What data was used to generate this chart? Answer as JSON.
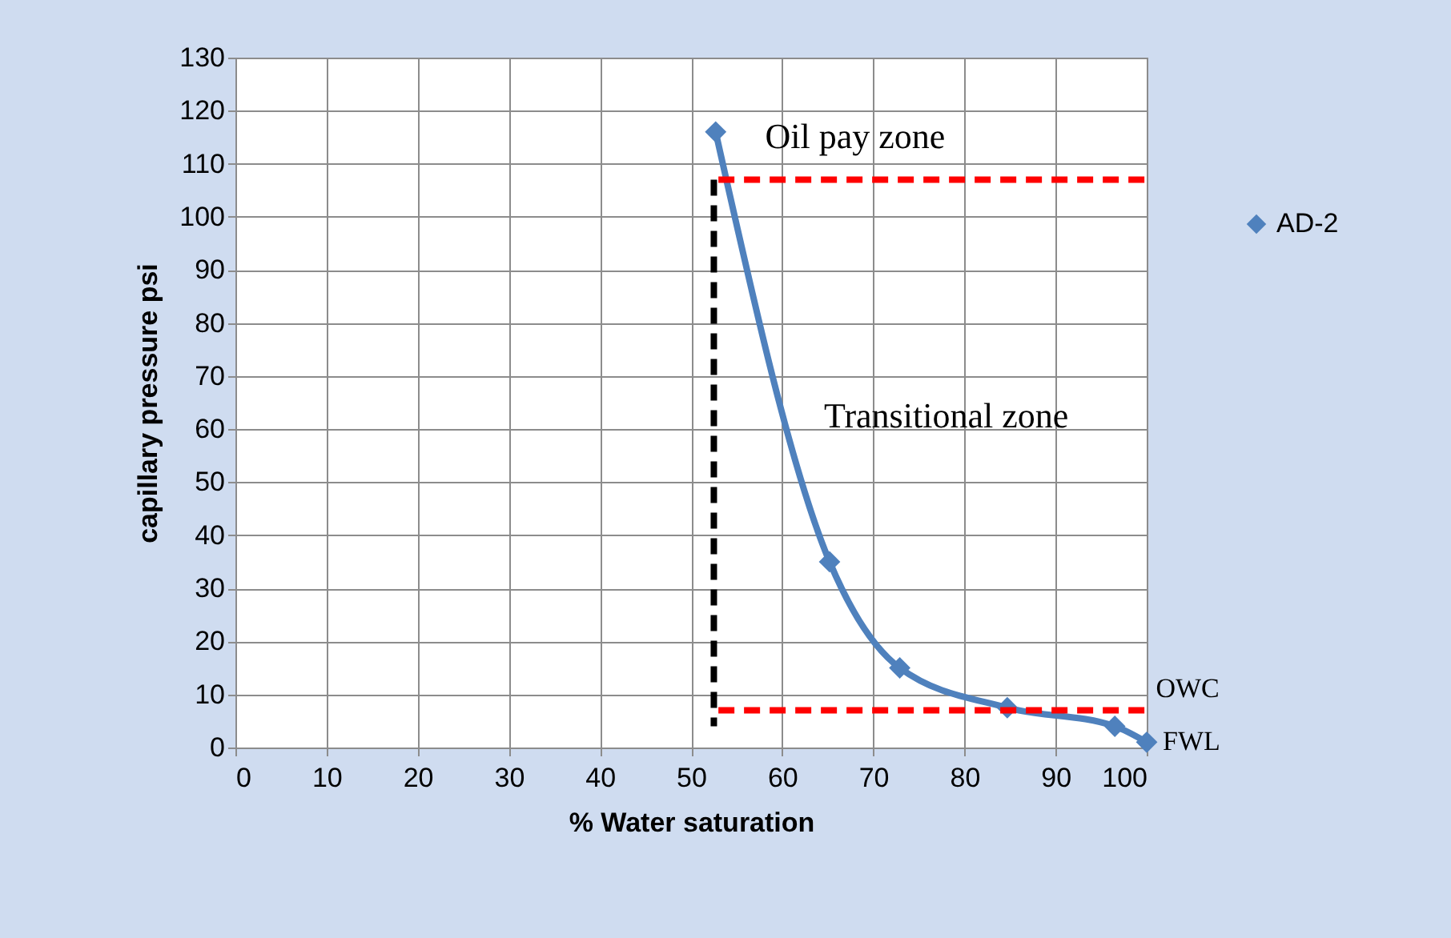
{
  "chart_data": {
    "type": "line",
    "xlabel": "% Water saturation",
    "ylabel": "capillary pressure psi",
    "xlim": [
      0,
      100
    ],
    "xticks": [
      0,
      10,
      20,
      30,
      40,
      50,
      60,
      70,
      80,
      90,
      100
    ],
    "ylim": [
      0,
      130
    ],
    "yticks": [
      0,
      10,
      20,
      30,
      40,
      50,
      60,
      70,
      80,
      90,
      100,
      110,
      120,
      130
    ],
    "grid": true,
    "legend": "right",
    "series": [
      {
        "name": "AD-2",
        "color": "#4f81bd",
        "marker": "diamond",
        "line_style": "solid",
        "x": [
          52.7,
          65.2,
          72.9,
          84.7,
          96.5,
          100
        ],
        "values": [
          116,
          35,
          15,
          7.5,
          4,
          1
        ]
      },
      {
        "color": "#ff0000",
        "marker": "none",
        "line_style": "dashed",
        "x": [
          53,
          100
        ],
        "values": [
          107,
          107
        ]
      },
      {
        "color": "#ff0000",
        "marker": "none",
        "line_style": "dashed",
        "x": [
          53,
          100
        ],
        "values": [
          7,
          7
        ]
      },
      {
        "color": "#000000",
        "marker": "none",
        "line_style": "dashed",
        "x": [
          52.5,
          52.5
        ],
        "values": [
          107,
          4
        ]
      }
    ],
    "annotations": [
      "Oil pay zone",
      "Transitional zone",
      "OWC",
      {
        "text": "FWL",
        "x": 100,
        "y": 1
      }
    ]
  }
}
